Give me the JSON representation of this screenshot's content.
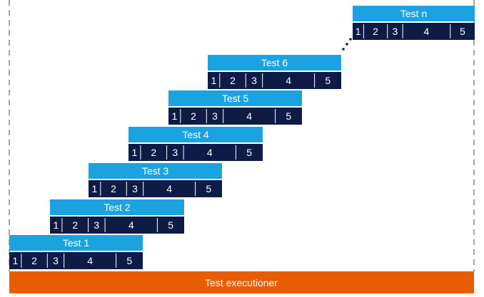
{
  "tests": [
    {
      "title": "Test 1",
      "segments": [
        "1",
        "2",
        "3",
        "4",
        "5"
      ]
    },
    {
      "title": "Test 2",
      "segments": [
        "1",
        "2",
        "3",
        "4",
        "5"
      ]
    },
    {
      "title": "Test 3",
      "segments": [
        "1",
        "2",
        "3",
        "4",
        "5"
      ]
    },
    {
      "title": "Test 4",
      "segments": [
        "1",
        "2",
        "3",
        "4",
        "5"
      ]
    },
    {
      "title": "Test 5",
      "segments": [
        "1",
        "2",
        "3",
        "4",
        "5"
      ]
    },
    {
      "title": "Test 6",
      "segments": [
        "1",
        "2",
        "3",
        "4",
        "5"
      ]
    },
    {
      "title": "Test n",
      "segments": [
        "1",
        "2",
        "3",
        "4",
        "5"
      ]
    }
  ],
  "footer": {
    "label": "Test executioner"
  }
}
